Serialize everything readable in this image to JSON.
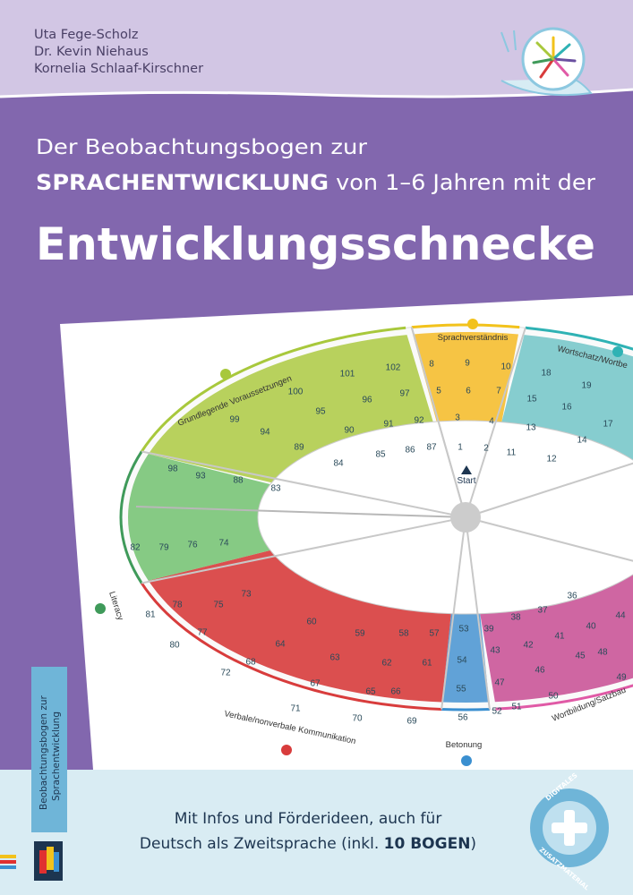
{
  "authors": [
    "Uta Fege-Scholz",
    "Dr. Kevin Niehaus",
    "Kornelia Schlaaf-Kirschner"
  ],
  "title": {
    "line1": "Der Beobachtungsbogen zur",
    "line2_caps": "SPRACHENTWICKLUNG",
    "line2_rest": "von 1–6 Jahren mit der",
    "main": "Entwicklungsschnecke"
  },
  "diagram": {
    "sections": [
      "Sprachverständnis",
      "Wortschatz/Wortbe",
      "Grundlegende Voraussetzungen",
      "Literacy",
      "Verbale/nonverbale Kommunikation",
      "Betonung",
      "Wortbildung/Satzbau"
    ],
    "start": "Start",
    "cells": [
      "8",
      "9",
      "10",
      "5",
      "6",
      "7",
      "3",
      "4",
      "1",
      "2",
      "18",
      "19",
      "15",
      "16",
      "17",
      "13",
      "14",
      "11",
      "12",
      "102",
      "101",
      "100",
      "97",
      "96",
      "95",
      "99",
      "94",
      "92",
      "91",
      "90",
      "89",
      "87",
      "86",
      "85",
      "84",
      "98",
      "93",
      "88",
      "83",
      "82",
      "79",
      "76",
      "74",
      "73",
      "81",
      "78",
      "75",
      "77",
      "80",
      "72",
      "68",
      "64",
      "60",
      "63",
      "67",
      "71",
      "59",
      "65",
      "70",
      "58",
      "57",
      "62",
      "61",
      "66",
      "69",
      "53",
      "54",
      "55",
      "56",
      "39",
      "38",
      "37",
      "36",
      "43",
      "42",
      "41",
      "40",
      "44",
      "47",
      "46",
      "45",
      "48",
      "49",
      "52",
      "51",
      "50"
    ]
  },
  "spine": [
    "Beobachtungsbogen zur",
    "Sprachentwicklung"
  ],
  "footer": {
    "line1": "Mit Infos und Förderideen, auch für",
    "line2": "Deutsch als Zweitsprache (inkl.",
    "line2_bold": "10 BOGEN",
    "line2_end": ")"
  },
  "badge": [
    "DIGITALES",
    "ZUSATZMATERIAL"
  ]
}
